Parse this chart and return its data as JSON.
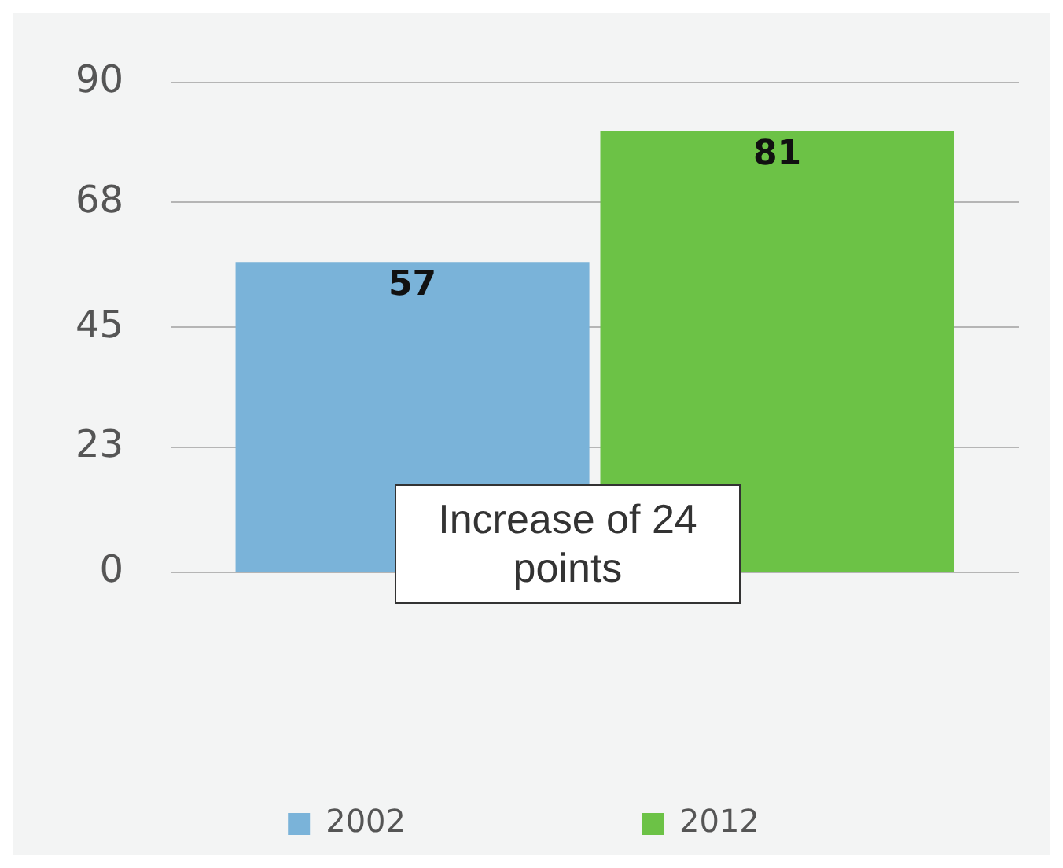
{
  "chart_data": {
    "type": "bar",
    "categories": [
      null
    ],
    "series": [
      {
        "name": "2002",
        "color": "#7ab3d9",
        "values": [
          57
        ]
      },
      {
        "name": "2012",
        "color": "#6cc246",
        "values": [
          81
        ]
      }
    ],
    "ylim": [
      0,
      90
    ],
    "yticks": [
      0,
      23,
      45,
      68,
      90
    ],
    "grid": "y",
    "legend": "bottom",
    "data_labels": true,
    "annotations": [
      "Increase of 24 points"
    ]
  }
}
